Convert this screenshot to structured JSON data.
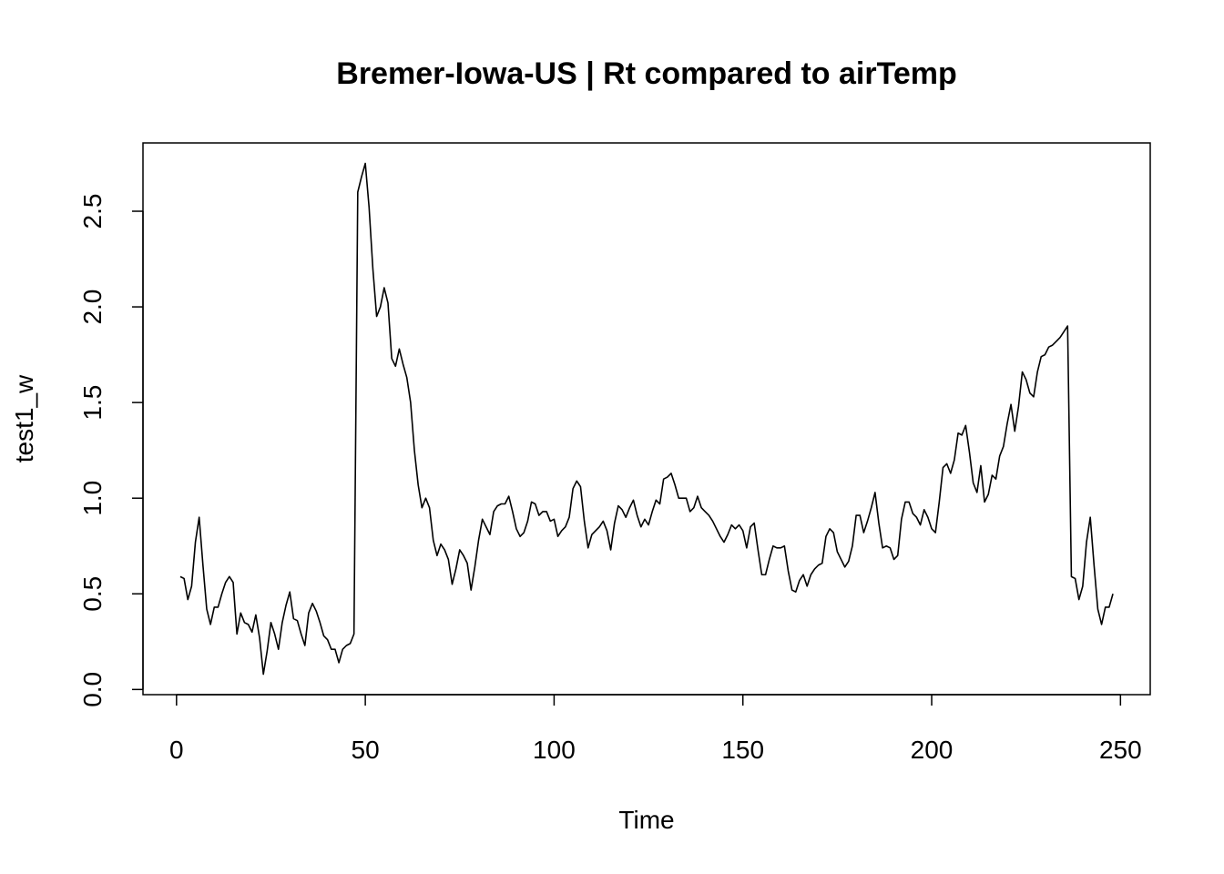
{
  "chart_data": {
    "type": "line",
    "title": "Bremer-Iowa-US | Rt compared to airTemp",
    "x_label": "Time",
    "y_label": "test1_w",
    "color": "#000000",
    "x": [
      1,
      2,
      3,
      4,
      5,
      6,
      7,
      8,
      9,
      10,
      11,
      12,
      13,
      14,
      15,
      16,
      17,
      18,
      19,
      20,
      21,
      22,
      23,
      24,
      25,
      26,
      27,
      28,
      29,
      30,
      31,
      32,
      33,
      34,
      35,
      36,
      37,
      38,
      39,
      40,
      41,
      42,
      43,
      44,
      45,
      46,
      47,
      48,
      49,
      50,
      51,
      52,
      53,
      54,
      55,
      56,
      57,
      58,
      59,
      60,
      61,
      62,
      63,
      64,
      65,
      66,
      67,
      68,
      69,
      70,
      71,
      72,
      73,
      74,
      75,
      76,
      77,
      78,
      79,
      80,
      81,
      82,
      83,
      84,
      85,
      86,
      87,
      88,
      89,
      90,
      91,
      92,
      93,
      94,
      95,
      96,
      97,
      98,
      99,
      100,
      101,
      102,
      103,
      104,
      105,
      106,
      107,
      108,
      109,
      110,
      111,
      112,
      113,
      114,
      115,
      116,
      117,
      118,
      119,
      120,
      121,
      122,
      123,
      124,
      125,
      126,
      127,
      128,
      129,
      130,
      131,
      132,
      133,
      134,
      135,
      136,
      137,
      138,
      139,
      140,
      141,
      142,
      143,
      144,
      145,
      146,
      147,
      148,
      149,
      150,
      151,
      152,
      153,
      154,
      155,
      156,
      157,
      158,
      159,
      160,
      161,
      162,
      163,
      164,
      165,
      166,
      167,
      168,
      169,
      170,
      171,
      172,
      173,
      174,
      175,
      176,
      177,
      178,
      179,
      180,
      181,
      182,
      183,
      184,
      185,
      186,
      187,
      188,
      189,
      190,
      191,
      192,
      193,
      194,
      195,
      196,
      197,
      198,
      199,
      200,
      201,
      202,
      203,
      204,
      205,
      206,
      207,
      208,
      209,
      210,
      211,
      212,
      213,
      214,
      215,
      216,
      217,
      218,
      219,
      220,
      221,
      222,
      223,
      224,
      225,
      226,
      227,
      228,
      229,
      230,
      231,
      232,
      233,
      234,
      235,
      236,
      237,
      238,
      239,
      240,
      241,
      242,
      243,
      244,
      245,
      246,
      247,
      248
    ],
    "values": [
      0.59,
      0.58,
      0.47,
      0.54,
      0.77,
      0.9,
      0.65,
      0.42,
      0.34,
      0.43,
      0.43,
      0.5,
      0.56,
      0.59,
      0.56,
      0.29,
      0.4,
      0.35,
      0.34,
      0.3,
      0.39,
      0.27,
      0.08,
      0.2,
      0.35,
      0.29,
      0.21,
      0.35,
      0.44,
      0.51,
      0.37,
      0.36,
      0.29,
      0.23,
      0.4,
      0.45,
      0.41,
      0.35,
      0.28,
      0.26,
      0.21,
      0.21,
      0.14,
      0.21,
      0.23,
      0.24,
      0.29,
      2.6,
      2.68,
      2.75,
      2.52,
      2.2,
      1.95,
      2.0,
      2.1,
      2.02,
      1.73,
      1.69,
      1.78,
      1.7,
      1.63,
      1.5,
      1.25,
      1.07,
      0.95,
      1.0,
      0.95,
      0.78,
      0.7,
      0.76,
      0.73,
      0.68,
      0.55,
      0.63,
      0.73,
      0.7,
      0.66,
      0.52,
      0.64,
      0.78,
      0.89,
      0.85,
      0.81,
      0.93,
      0.96,
      0.97,
      0.97,
      1.01,
      0.93,
      0.84,
      0.8,
      0.82,
      0.88,
      0.98,
      0.97,
      0.91,
      0.93,
      0.93,
      0.88,
      0.89,
      0.8,
      0.83,
      0.85,
      0.9,
      1.05,
      1.09,
      1.06,
      0.88,
      0.74,
      0.81,
      0.83,
      0.85,
      0.88,
      0.83,
      0.73,
      0.87,
      0.96,
      0.94,
      0.9,
      0.95,
      0.99,
      0.91,
      0.85,
      0.89,
      0.86,
      0.93,
      0.99,
      0.97,
      1.1,
      1.11,
      1.13,
      1.07,
      1.0,
      1.0,
      1.0,
      0.93,
      0.95,
      1.01,
      0.95,
      0.93,
      0.91,
      0.88,
      0.84,
      0.8,
      0.77,
      0.81,
      0.86,
      0.84,
      0.86,
      0.83,
      0.74,
      0.85,
      0.87,
      0.73,
      0.6,
      0.6,
      0.68,
      0.75,
      0.74,
      0.74,
      0.75,
      0.62,
      0.52,
      0.51,
      0.57,
      0.6,
      0.54,
      0.6,
      0.63,
      0.65,
      0.66,
      0.8,
      0.84,
      0.82,
      0.72,
      0.68,
      0.64,
      0.67,
      0.75,
      0.91,
      0.91,
      0.82,
      0.88,
      0.95,
      1.03,
      0.87,
      0.74,
      0.75,
      0.74,
      0.68,
      0.7,
      0.89,
      0.98,
      0.98,
      0.92,
      0.9,
      0.86,
      0.94,
      0.9,
      0.84,
      0.82,
      0.98,
      1.16,
      1.18,
      1.13,
      1.2,
      1.34,
      1.33,
      1.38,
      1.24,
      1.08,
      1.03,
      1.17,
      0.98,
      1.02,
      1.12,
      1.1,
      1.22,
      1.27,
      1.39,
      1.49,
      1.35,
      1.48,
      1.66,
      1.62,
      1.55,
      1.53,
      1.66,
      1.74,
      1.75,
      1.79,
      1.8,
      1.82,
      1.84,
      1.87,
      1.9,
      0.59,
      0.58,
      0.47,
      0.54,
      0.77,
      0.9,
      0.65,
      0.42,
      0.34,
      0.43,
      0.43,
      0.5
    ],
    "xlim": [
      -8.88,
      257.88
    ],
    "ylim": [
      -0.027,
      2.857
    ],
    "xticks": [
      0,
      50,
      100,
      150,
      200,
      250
    ],
    "yticks": [
      {
        "value": 0,
        "label": "0.0"
      },
      0.5,
      {
        "value": 1,
        "label": "1.0"
      },
      1.5,
      {
        "value": 2,
        "label": "2.0"
      },
      2.5
    ]
  }
}
